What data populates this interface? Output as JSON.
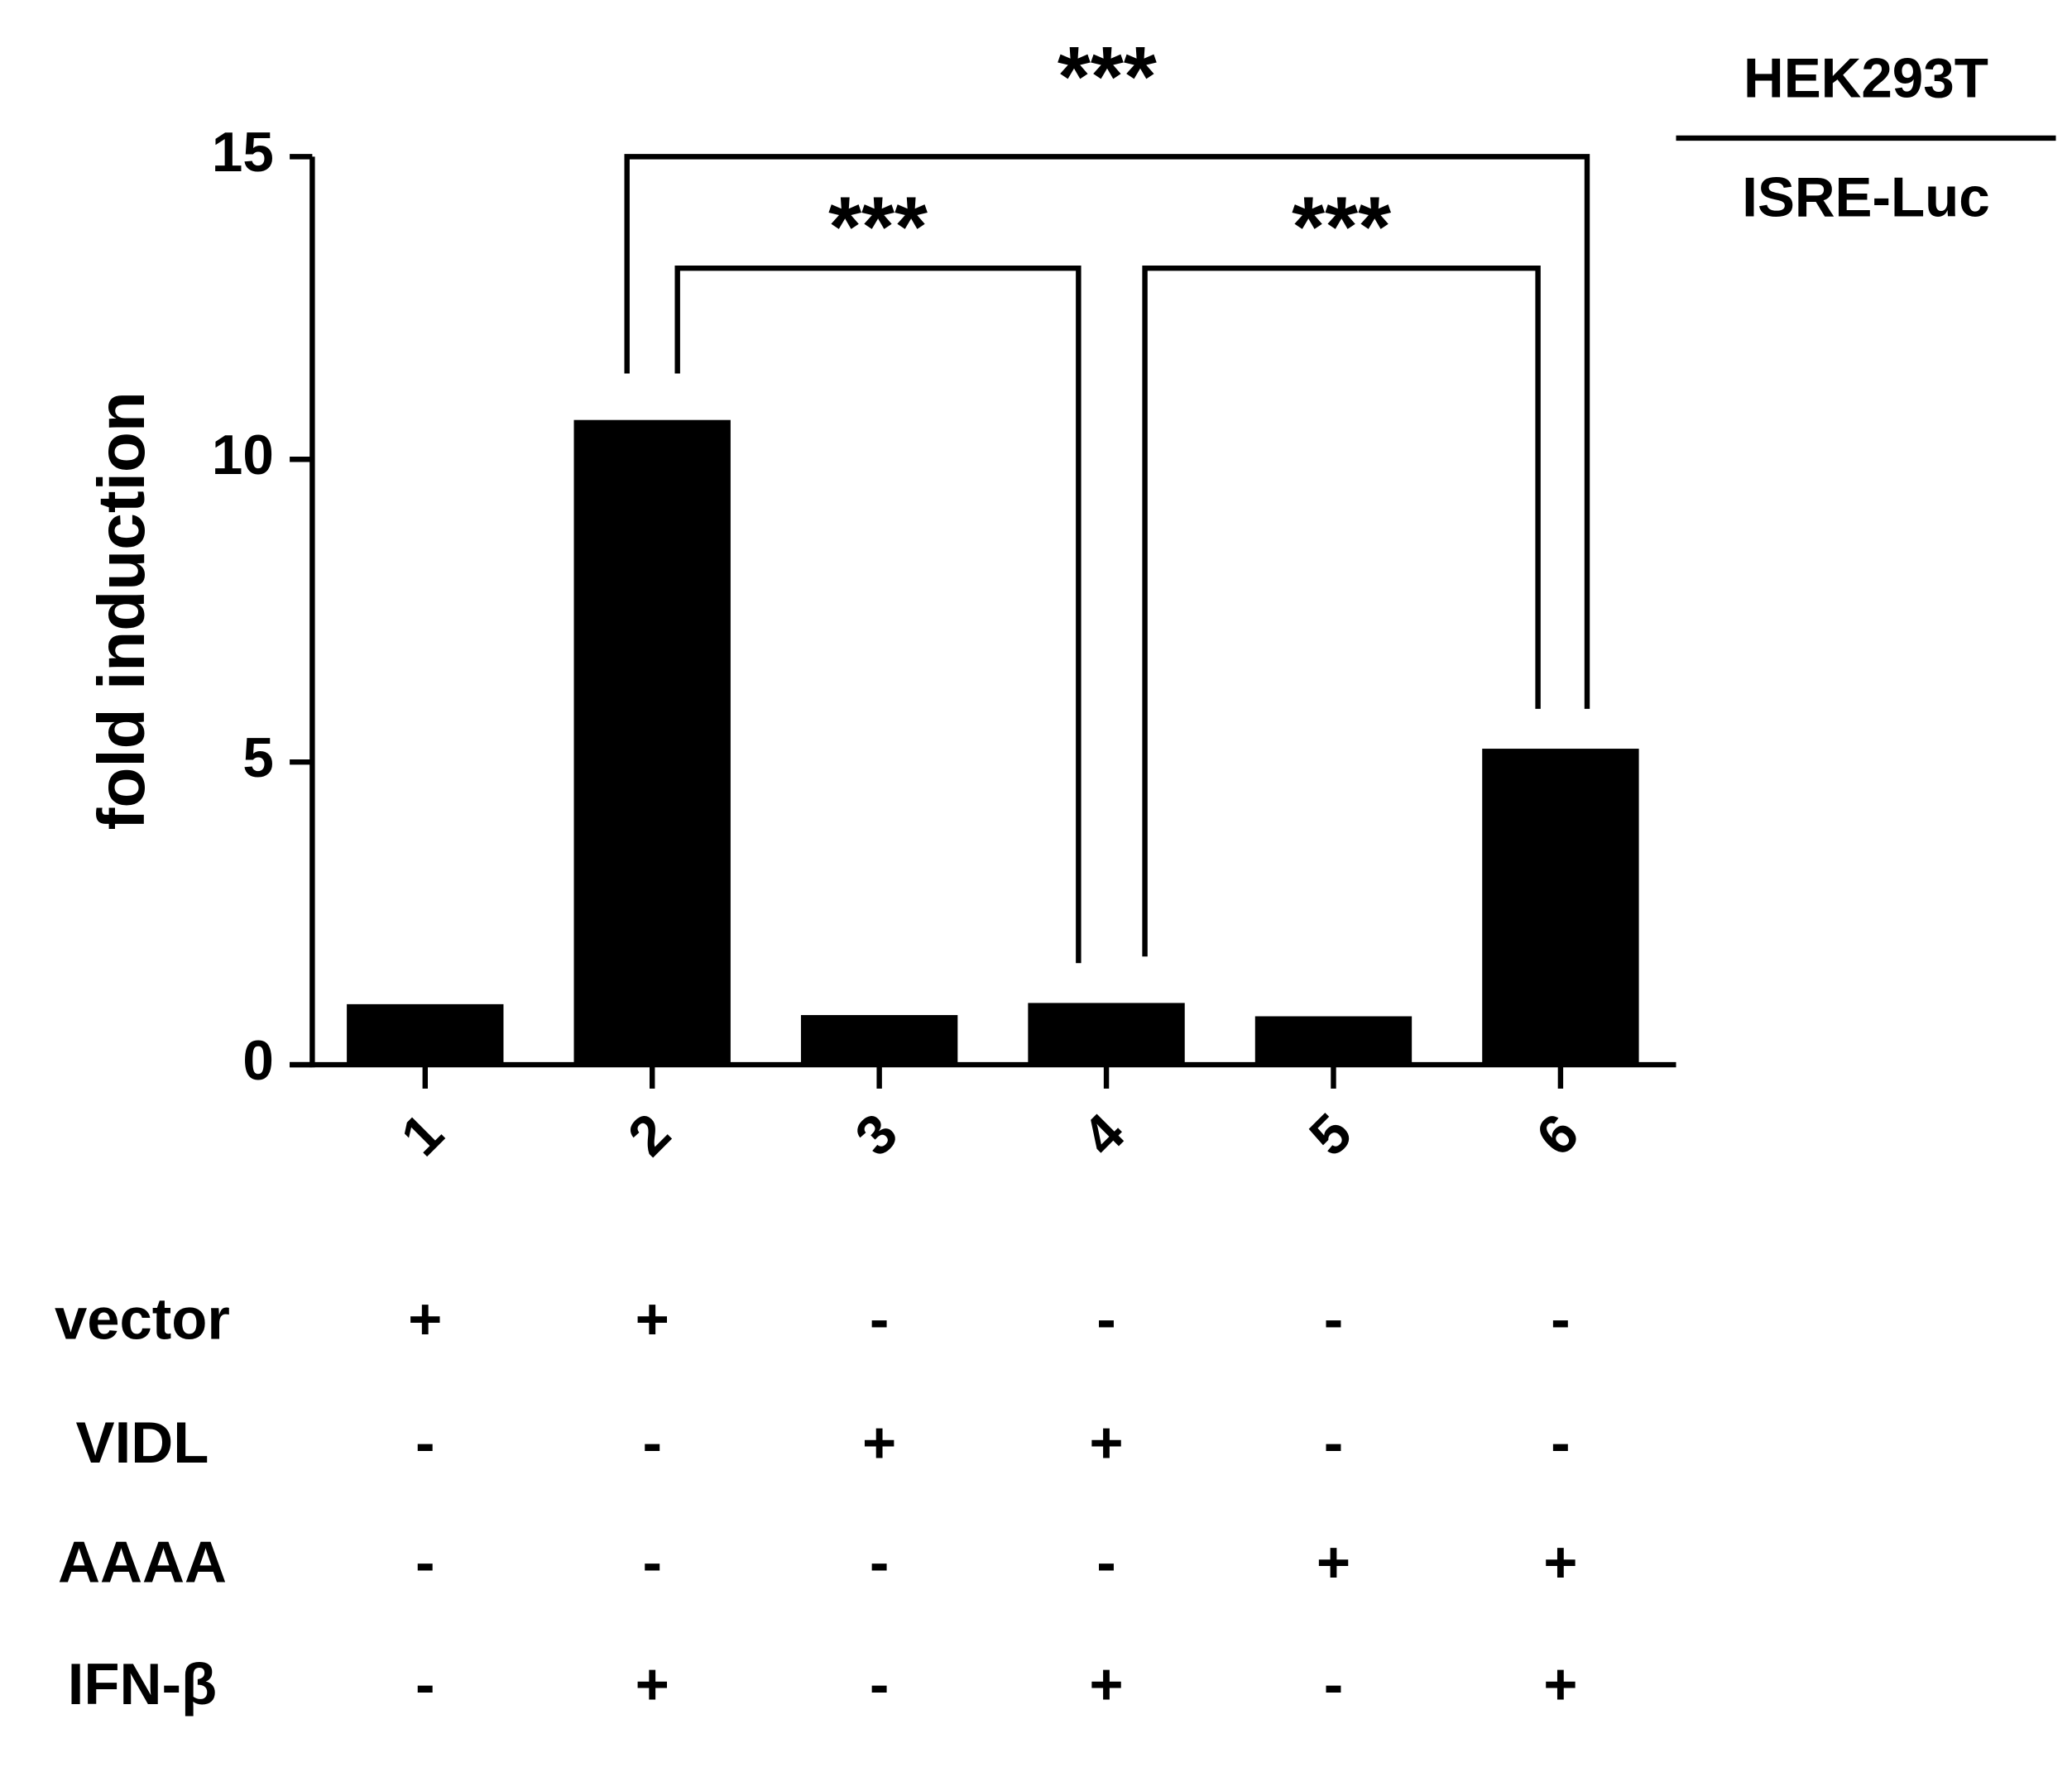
{
  "chart_data": {
    "type": "bar",
    "y_label": "fold induction",
    "categories": [
      "1",
      "2",
      "3",
      "4",
      "5",
      "6"
    ],
    "values": [
      1.0,
      10.65,
      0.82,
      1.02,
      0.8,
      5.22
    ],
    "color": "#000000",
    "ylim": [
      0,
      15
    ],
    "yticks": [
      0,
      5,
      10,
      15
    ],
    "grid": false,
    "annotations": [
      {
        "text": "***",
        "from": 1,
        "to": 5
      },
      {
        "text": "***",
        "from": 1,
        "to": 3
      },
      {
        "text": "***",
        "from": 3,
        "to": 5
      }
    ],
    "legend_title": "HEK293T",
    "legend_subtitle": "ISRE-Luc",
    "conditions": [
      {
        "name": "vector",
        "signs": [
          "+",
          "+",
          "-",
          "-",
          "-",
          "-"
        ]
      },
      {
        "name": "VIDL",
        "signs": [
          "-",
          "-",
          "+",
          "+",
          "-",
          "-"
        ]
      },
      {
        "name": "AAAA",
        "signs": [
          "-",
          "-",
          "-",
          "-",
          "+",
          "+"
        ]
      },
      {
        "name": "IFN-β",
        "signs": [
          "-",
          "+",
          "-",
          "+",
          "-",
          "+"
        ]
      }
    ]
  }
}
